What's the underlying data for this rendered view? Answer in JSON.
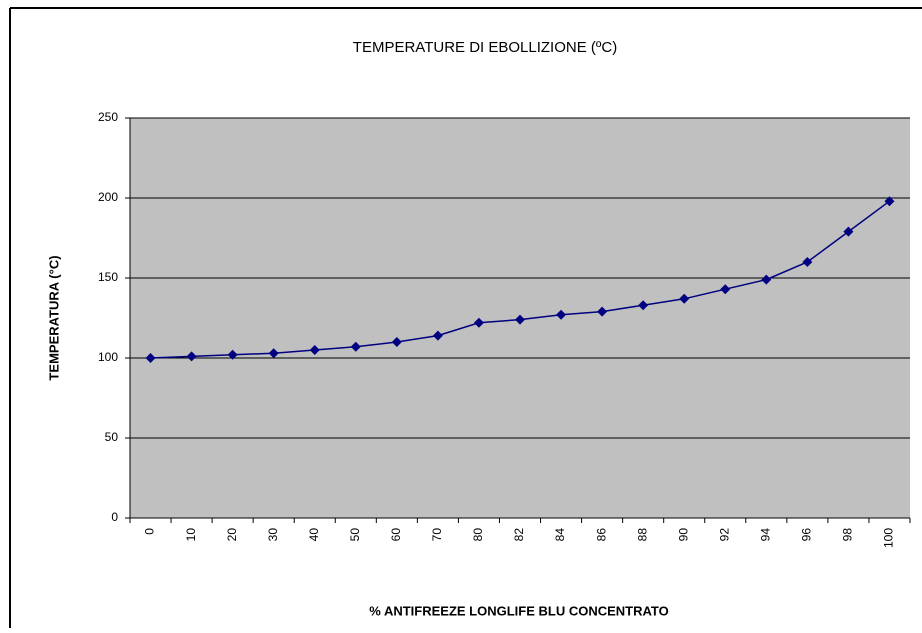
{
  "chart_data": {
    "type": "line",
    "title": "TEMPERATURE DI EBOLLIZIONE (ºC)",
    "x_label": "% ANTIFREEZE LONGLIFE BLU CONCENTRATO",
    "y_label": "TEMPERATURA  (°C)",
    "categories": [
      "0",
      "10",
      "20",
      "30",
      "40",
      "50",
      "60",
      "70",
      "80",
      "82",
      "84",
      "86",
      "88",
      "90",
      "92",
      "94",
      "96",
      "98",
      "100"
    ],
    "series": [
      {
        "name": "TEMPERATURA",
        "color": "#000080",
        "values": [
          100,
          101,
          102,
          103,
          105,
          107,
          110,
          114,
          122,
          124,
          127,
          129,
          133,
          137,
          143,
          149,
          160,
          179,
          198
        ]
      }
    ],
    "ylim": [
      0,
      250
    ],
    "yticks": [
      0,
      50,
      100,
      150,
      200,
      250
    ],
    "grid": true
  }
}
